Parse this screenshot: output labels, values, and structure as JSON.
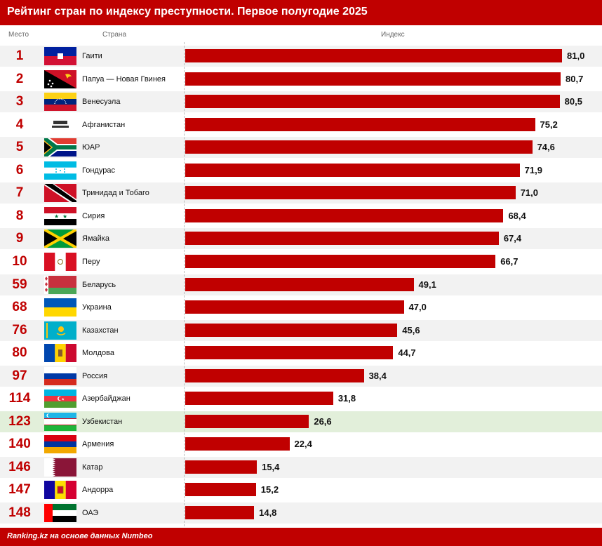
{
  "header": {
    "title": "Рейтинг стран по индексу преступности. Первое полугодие 2025"
  },
  "columns": {
    "rank": "Место",
    "country": "Страна",
    "index": "Индекс"
  },
  "footer": {
    "source": "Ranking.kz на основе данных Numbeo"
  },
  "colors": {
    "accent": "#c00000",
    "highlight_row": "#e2efda",
    "alt_row": "#f2f2f2"
  },
  "chart_data": {
    "type": "bar",
    "orientation": "horizontal",
    "title": "Рейтинг стран по индексу преступности. Первое полугодие 2025",
    "xlabel": "Индекс",
    "xlim": [
      0,
      81
    ],
    "grid": false,
    "highlight": "Узбекистан",
    "rows": [
      {
        "rank": "1",
        "country": "Гаити",
        "value": 81.0,
        "label": "81,0",
        "flag": "haiti-flag"
      },
      {
        "rank": "2",
        "country": "Папуа — Новая Гвинея",
        "value": 80.7,
        "label": "80,7",
        "flag": "papua-new-guinea-flag"
      },
      {
        "rank": "3",
        "country": "Венесуэла",
        "value": 80.5,
        "label": "80,5",
        "flag": "venezuela-flag"
      },
      {
        "rank": "4",
        "country": "Афганистан",
        "value": 75.2,
        "label": "75,2",
        "flag": "afghanistan-flag"
      },
      {
        "rank": "5",
        "country": "ЮАР",
        "value": 74.6,
        "label": "74,6",
        "flag": "south-africa-flag"
      },
      {
        "rank": "6",
        "country": "Гондурас",
        "value": 71.9,
        "label": "71,9",
        "flag": "honduras-flag"
      },
      {
        "rank": "7",
        "country": "Тринидад и Тобаго",
        "value": 71.0,
        "label": "71,0",
        "flag": "trinidad-and-tobago-flag"
      },
      {
        "rank": "8",
        "country": "Сирия",
        "value": 68.4,
        "label": "68,4",
        "flag": "syria-flag"
      },
      {
        "rank": "9",
        "country": "Ямайка",
        "value": 67.4,
        "label": "67,4",
        "flag": "jamaica-flag"
      },
      {
        "rank": "10",
        "country": "Перу",
        "value": 66.7,
        "label": "66,7",
        "flag": "peru-flag"
      },
      {
        "rank": "59",
        "country": "Беларусь",
        "value": 49.1,
        "label": "49,1",
        "flag": "belarus-flag"
      },
      {
        "rank": "68",
        "country": "Украина",
        "value": 47.0,
        "label": "47,0",
        "flag": "ukraine-flag"
      },
      {
        "rank": "76",
        "country": "Казахстан",
        "value": 45.6,
        "label": "45,6",
        "flag": "kazakhstan-flag"
      },
      {
        "rank": "80",
        "country": "Молдова",
        "value": 44.7,
        "label": "44,7",
        "flag": "moldova-flag"
      },
      {
        "rank": "97",
        "country": "Россия",
        "value": 38.4,
        "label": "38,4",
        "flag": "russia-flag"
      },
      {
        "rank": "114",
        "country": "Азербайджан",
        "value": 31.8,
        "label": "31,8",
        "flag": "azerbaijan-flag"
      },
      {
        "rank": "123",
        "country": "Узбекистан",
        "value": 26.6,
        "label": "26,6",
        "flag": "uzbekistan-flag"
      },
      {
        "rank": "140",
        "country": "Армения",
        "value": 22.4,
        "label": "22,4",
        "flag": "armenia-flag"
      },
      {
        "rank": "146",
        "country": "Катар",
        "value": 15.4,
        "label": "15,4",
        "flag": "qatar-flag"
      },
      {
        "rank": "147",
        "country": "Андорра",
        "value": 15.2,
        "label": "15,2",
        "flag": "andorra-flag"
      },
      {
        "rank": "148",
        "country": "ОАЭ",
        "value": 14.8,
        "label": "14,8",
        "flag": "uae-flag"
      }
    ]
  }
}
